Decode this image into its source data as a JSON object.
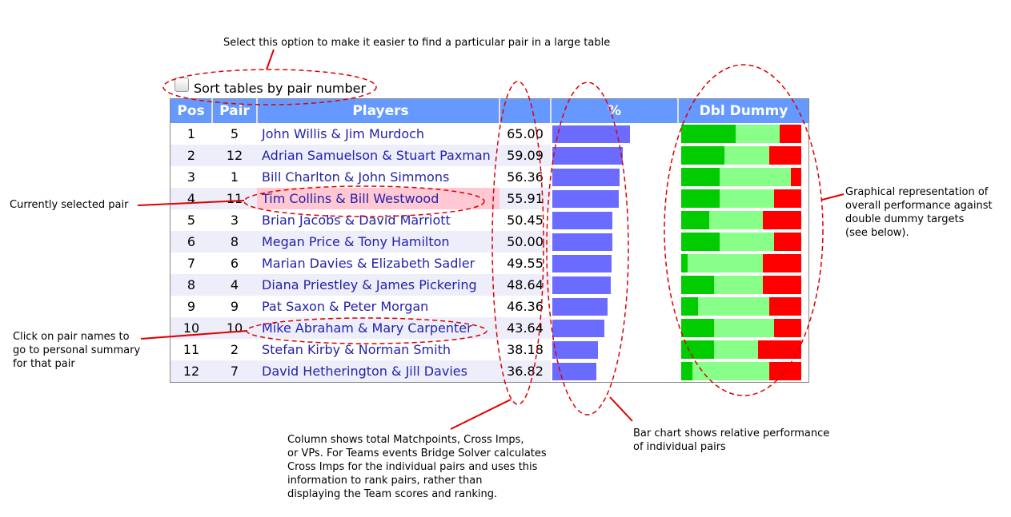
{
  "sort_option": {
    "label": "Sort tables by pair number",
    "checked": false
  },
  "headers": {
    "pos": "Pos",
    "pair": "Pair",
    "players": "Players",
    "score": "",
    "percent": "%",
    "dbl_dummy": "Dbl Dummy"
  },
  "rows": [
    {
      "pos": "1",
      "pair": "5",
      "players": "John Willis & Jim Murdoch",
      "score": "65.00",
      "percent": 65.0,
      "dd": [
        45,
        37,
        18
      ]
    },
    {
      "pos": "2",
      "pair": "12",
      "players": "Adrian Samuelson & Stuart Paxman",
      "score": "59.09",
      "percent": 59.09,
      "dd": [
        36,
        37,
        27
      ]
    },
    {
      "pos": "3",
      "pair": "1",
      "players": "Bill Charlton & John Simmons",
      "score": "56.36",
      "percent": 56.36,
      "dd": [
        32,
        59,
        9
      ]
    },
    {
      "pos": "4",
      "pair": "11",
      "players": "Tim Collins & Bill Westwood",
      "score": "55.91",
      "percent": 55.91,
      "dd": [
        32,
        45,
        23
      ]
    },
    {
      "pos": "5",
      "pair": "3",
      "players": "Brian Jacobs & David Marriott",
      "score": "50.45",
      "percent": 50.45,
      "dd": [
        23,
        45,
        32
      ]
    },
    {
      "pos": "6",
      "pair": "8",
      "players": "Megan Price & Tony Hamilton",
      "score": "50.00",
      "percent": 50.0,
      "dd": [
        32,
        45,
        23
      ]
    },
    {
      "pos": "7",
      "pair": "6",
      "players": "Marian Davies & Elizabeth Sadler",
      "score": "49.55",
      "percent": 49.55,
      "dd": [
        5,
        63,
        32
      ]
    },
    {
      "pos": "8",
      "pair": "4",
      "players": "Diana Priestley & James Pickering",
      "score": "48.64",
      "percent": 48.64,
      "dd": [
        27,
        41,
        32
      ]
    },
    {
      "pos": "9",
      "pair": "9",
      "players": "Pat Saxon & Peter Morgan",
      "score": "46.36",
      "percent": 46.36,
      "dd": [
        14,
        59,
        27
      ]
    },
    {
      "pos": "10",
      "pair": "10",
      "players": "Mike Abraham & Mary Carpenter",
      "score": "43.64",
      "percent": 43.64,
      "dd": [
        27,
        50,
        23
      ]
    },
    {
      "pos": "11",
      "pair": "2",
      "players": "Stefan Kirby & Norman Smith",
      "score": "38.18",
      "percent": 38.18,
      "dd": [
        27,
        37,
        36
      ]
    },
    {
      "pos": "12",
      "pair": "7",
      "players": "David Hetherington & Jill Davies",
      "score": "36.82",
      "percent": 36.82,
      "dd": [
        9,
        64,
        27
      ]
    }
  ],
  "selected_row": 3,
  "annotations": {
    "sort": "Select this option to make it easier to find a particular pair in a large table",
    "selected": "Currently selected pair",
    "click": "Click on pair names to\ngo to personal summary\nfor that pair",
    "column": "Column shows total Matchpoints, Cross Imps,\nor VPs. For Teams events Bridge Solver calculates\nCross Imps for the individual pairs and uses this\ninformation to rank pairs, rather than\ndisplaying the Team scores and ranking.",
    "barchart": "Bar chart shows relative performance\nof individual pairs",
    "graphical": "Graphical representation of\noverall performance against\ndouble dummy targets\n(see below)."
  },
  "colors": {
    "header": "#6699ff",
    "bar": "#6b6bff",
    "dd_good": "#00cc00",
    "dd_par": "#88ff88",
    "dd_bad": "#ff0000",
    "annotation": "#dd0000",
    "selected": "#ffc8d3"
  }
}
